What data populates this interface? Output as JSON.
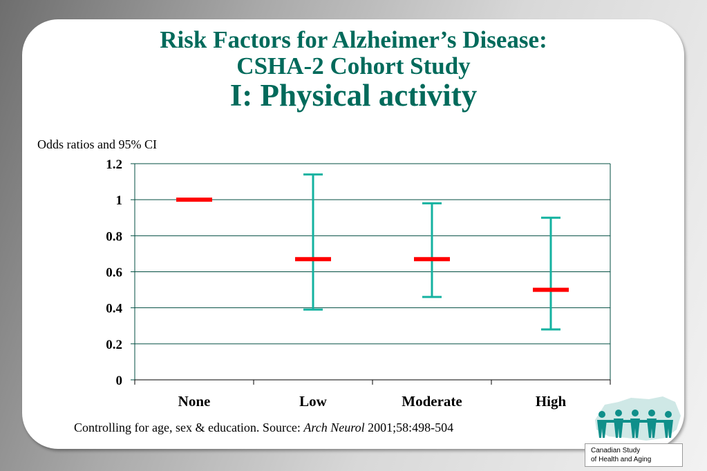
{
  "title": {
    "line1": "Risk Factors for Alzheimer’s Disease:",
    "line2": "CSHA-2 Cohort Study",
    "line3": "I:  Physical activity"
  },
  "footnote": {
    "prefix": "Controlling for age, sex & education.  Source: ",
    "journal": "Arch Neurol",
    "citation": " 2001;58:498-504"
  },
  "logo": {
    "line1": "Canadian Study",
    "line2": "of Health and Aging"
  },
  "colors": {
    "accent": "#006a5b",
    "estimate": "#ff0000",
    "ci": "#14b2a0",
    "grid": "#004d40"
  },
  "chart_data": {
    "type": "scatter",
    "ylabel": "Odds ratios and 95% CI",
    "ylim": [
      0,
      1.2
    ],
    "yticks": [
      "0",
      "0.2",
      "0.4",
      "0.6",
      "0.8",
      "1",
      "1.2"
    ],
    "grid": true,
    "categories": [
      "None",
      "Low",
      "Moderate",
      "High"
    ],
    "estimates": [
      1.0,
      0.67,
      0.67,
      0.5
    ],
    "ci_lower": [
      null,
      0.39,
      0.46,
      0.28
    ],
    "ci_upper": [
      null,
      1.14,
      0.98,
      0.9
    ]
  }
}
